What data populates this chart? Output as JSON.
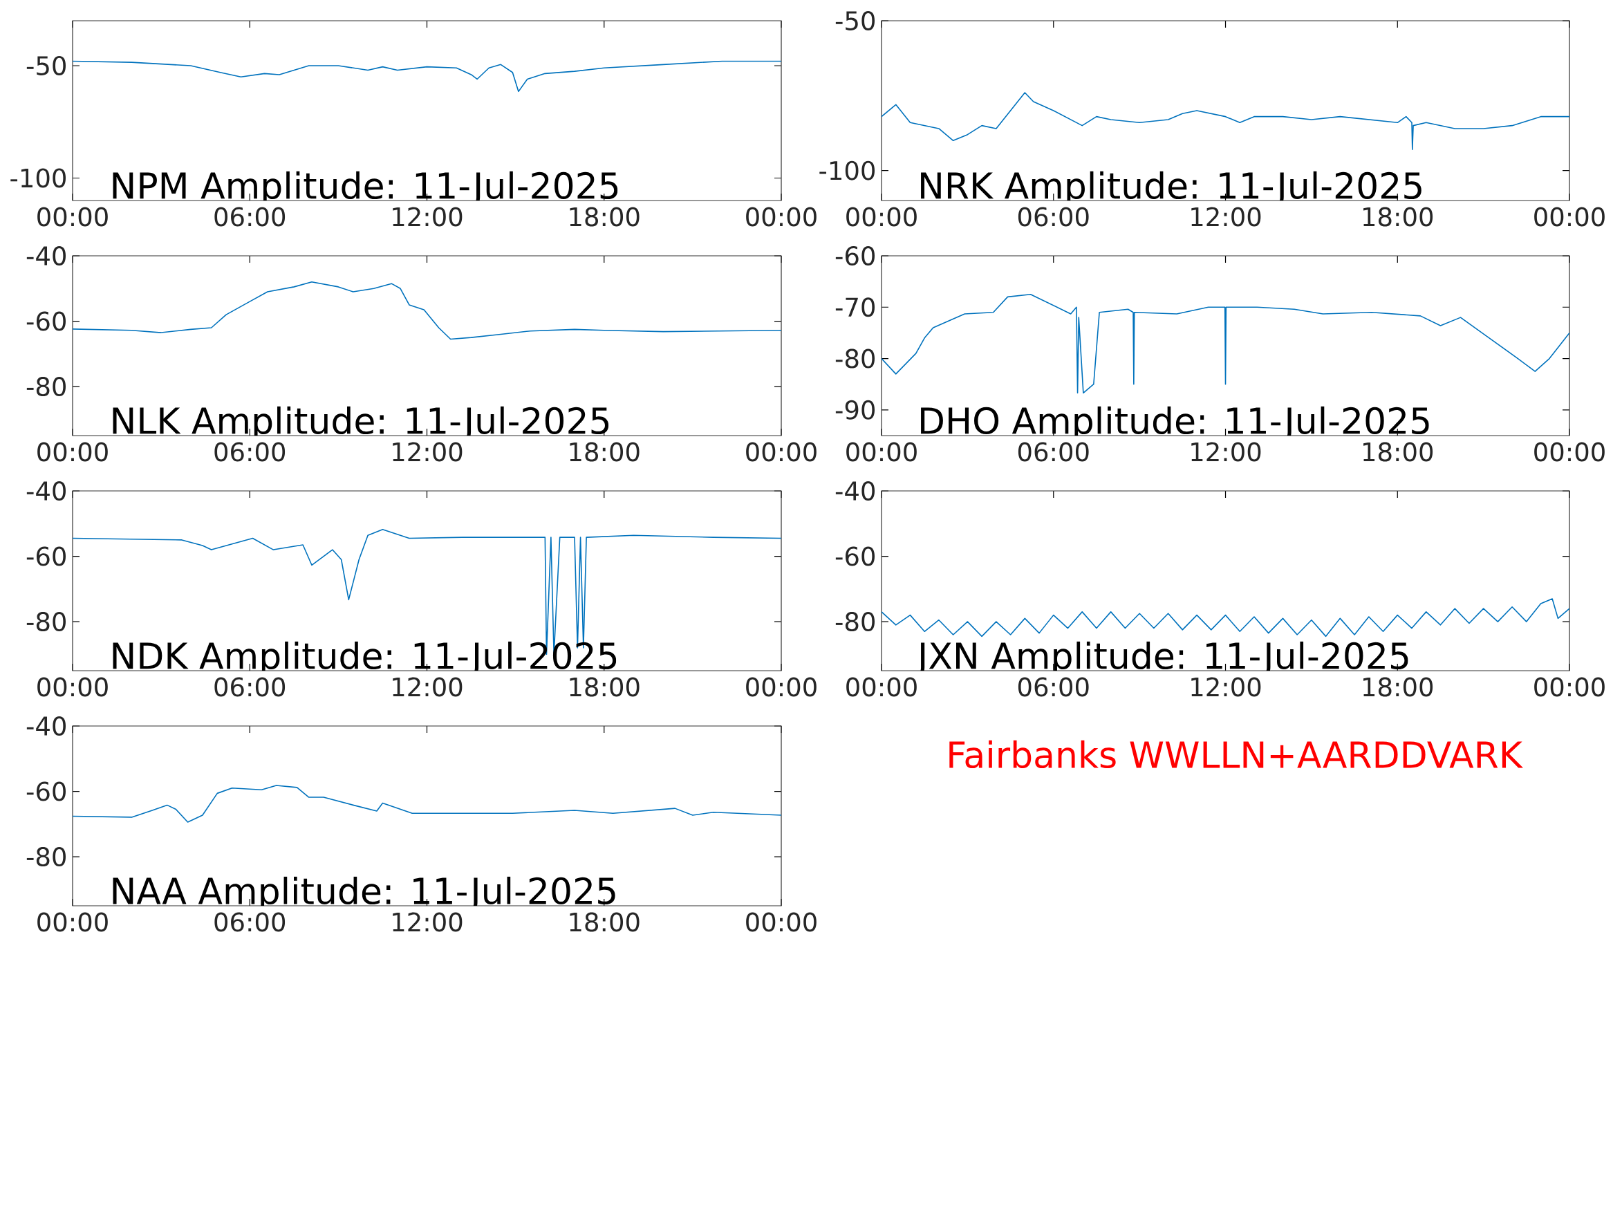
{
  "chart_data": [
    {
      "type": "line",
      "title": "NPM Amplitude: 11-Jul-2025",
      "color": "#0072bd",
      "xlim": [
        0,
        24
      ],
      "ylim": [
        -110,
        -30
      ],
      "xticks": [
        {
          "value": 0,
          "label": "00:00"
        },
        {
          "value": 6,
          "label": "06:00"
        },
        {
          "value": 12,
          "label": "12:00"
        },
        {
          "value": 18,
          "label": "18:00"
        },
        {
          "value": 24,
          "label": "00:00"
        }
      ],
      "yticks": [
        -100,
        -50
      ],
      "x": [
        0,
        2,
        4,
        5,
        5.7,
        6.5,
        7,
        7.5,
        8,
        9,
        10,
        10.5,
        11,
        12,
        13,
        13.5,
        13.7,
        14.1,
        14.5,
        14.9,
        15.1,
        15.4,
        16,
        17,
        18,
        20,
        22,
        24
      ],
      "values": [
        -48,
        -48.5,
        -50,
        -53,
        -55,
        -53.5,
        -54,
        -52,
        -50,
        -50,
        -52,
        -50.5,
        -52,
        -50.5,
        -51,
        -54,
        -56,
        -51,
        -49.5,
        -53,
        -61.5,
        -56,
        -53.5,
        -52.5,
        -51,
        -49.5,
        -48,
        -48
      ]
    },
    {
      "type": "line",
      "title": "NRK Amplitude: 11-Jul-2025",
      "color": "#0072bd",
      "xlim": [
        0,
        24
      ],
      "ylim": [
        -110,
        -50
      ],
      "xticks": [
        {
          "value": 0,
          "label": "00:00"
        },
        {
          "value": 6,
          "label": "06:00"
        },
        {
          "value": 12,
          "label": "12:00"
        },
        {
          "value": 18,
          "label": "18:00"
        },
        {
          "value": 24,
          "label": "00:00"
        }
      ],
      "yticks": [
        -100,
        -50
      ],
      "x": [
        0,
        0.5,
        1,
        2,
        2.5,
        3,
        3.5,
        4,
        4.5,
        5,
        5.3,
        6,
        7,
        7.5,
        8,
        9,
        10,
        10.5,
        11,
        12,
        12.5,
        13,
        14,
        15,
        16,
        17,
        18,
        18.3,
        18.5,
        18.52,
        18.55,
        19,
        20,
        21,
        22,
        23,
        24
      ],
      "values": [
        -82,
        -78,
        -84,
        -86,
        -90,
        -88,
        -85,
        -86,
        -80,
        -74,
        -77,
        -80,
        -85,
        -82,
        -83,
        -84,
        -83,
        -81,
        -80,
        -82,
        -84,
        -82,
        -82,
        -83,
        -82,
        -83,
        -84,
        -82,
        -84,
        -93,
        -85,
        -84,
        -86,
        -86,
        -85,
        -82,
        -82
      ]
    },
    {
      "type": "line",
      "title": "NLK Amplitude: 11-Jul-2025",
      "color": "#0072bd",
      "xlim": [
        0,
        24
      ],
      "ylim": [
        -95,
        -40
      ],
      "xticks": [
        {
          "value": 0,
          "label": "00:00"
        },
        {
          "value": 6,
          "label": "06:00"
        },
        {
          "value": 12,
          "label": "12:00"
        },
        {
          "value": 18,
          "label": "18:00"
        },
        {
          "value": 24,
          "label": "00:00"
        }
      ],
      "yticks": [
        -80,
        -60,
        -40
      ],
      "x": [
        0,
        2,
        3,
        4,
        4.7,
        5.2,
        6,
        6.6,
        7.5,
        8.1,
        9,
        9.5,
        10.2,
        10.8,
        11.1,
        11.4,
        11.9,
        12.4,
        12.8,
        13.5,
        14.5,
        15.5,
        17,
        18,
        20,
        22,
        24
      ],
      "values": [
        -62.4,
        -62.8,
        -63.5,
        -62.5,
        -62,
        -58,
        -54,
        -51,
        -49.5,
        -48,
        -49.5,
        -51,
        -50,
        -48.5,
        -50,
        -55,
        -56.5,
        -62,
        -65.5,
        -65,
        -64,
        -63,
        -62.5,
        -62.8,
        -63.2,
        -63,
        -62.8
      ]
    },
    {
      "type": "line",
      "title": "DHO Amplitude: 11-Jul-2025",
      "color": "#0072bd",
      "xlim": [
        0,
        24
      ],
      "ylim": [
        -95,
        -60
      ],
      "xticks": [
        {
          "value": 0,
          "label": "00:00"
        },
        {
          "value": 6,
          "label": "06:00"
        },
        {
          "value": 12,
          "label": "12:00"
        },
        {
          "value": 18,
          "label": "18:00"
        },
        {
          "value": 24,
          "label": "00:00"
        }
      ],
      "yticks": [
        -90,
        -80,
        -70,
        -60
      ],
      "x": [
        0,
        0.5,
        1.2,
        1.5,
        1.8,
        2.5,
        2.9,
        3.9,
        4.4,
        5.2,
        5.9,
        6.6,
        6.8,
        6.84,
        6.88,
        7.04,
        7.4,
        7.6,
        8.6,
        8.78,
        8.8,
        8.82,
        10.3,
        11.4,
        11.98,
        12,
        12.02,
        13.1,
        14.4,
        15.4,
        17.1,
        18.8,
        19.5,
        20.2,
        21.2,
        22.2,
        22.8,
        23.3,
        24
      ],
      "values": [
        -80,
        -83,
        -79,
        -76,
        -74,
        -72.3,
        -71.3,
        -71,
        -68,
        -67.5,
        -69.4,
        -71.3,
        -70,
        -86.7,
        -72,
        -86.7,
        -85,
        -71,
        -70.4,
        -71,
        -85,
        -71,
        -71.3,
        -70,
        -70,
        -85,
        -70,
        -70,
        -70.4,
        -71.3,
        -71,
        -71.7,
        -73.6,
        -72,
        -76,
        -80,
        -82.5,
        -80,
        -75
      ]
    },
    {
      "type": "line",
      "title": "NDK Amplitude: 11-Jul-2025",
      "color": "#0072bd",
      "xlim": [
        0,
        24
      ],
      "ylim": [
        -95,
        -40
      ],
      "xticks": [
        {
          "value": 0,
          "label": "00:00"
        },
        {
          "value": 6,
          "label": "06:00"
        },
        {
          "value": 12,
          "label": "12:00"
        },
        {
          "value": 18,
          "label": "18:00"
        },
        {
          "value": 24,
          "label": "00:00"
        }
      ],
      "yticks": [
        -80,
        -60,
        -40
      ],
      "x": [
        0,
        3.7,
        4.4,
        4.7,
        6.1,
        6.8,
        7.8,
        8.1,
        8.8,
        9.1,
        9.35,
        9.7,
        10,
        10.5,
        11.4,
        13.2,
        16,
        16.05,
        16.2,
        16.3,
        16.5,
        17,
        17.1,
        17.2,
        17.3,
        17.4,
        19,
        21.7,
        24
      ],
      "values": [
        -54.5,
        -55,
        -56.7,
        -58,
        -54.5,
        -58,
        -56.5,
        -62.7,
        -58,
        -61,
        -73.3,
        -61,
        -53.6,
        -51.8,
        -54.5,
        -54.2,
        -54.2,
        -90,
        -54.2,
        -90,
        -54.2,
        -54.2,
        -88,
        -54.2,
        -88,
        -54.2,
        -53.6,
        -54.2,
        -54.5
      ]
    },
    {
      "type": "line",
      "title": "JXN Amplitude: 11-Jul-2025",
      "color": "#0072bd",
      "xlim": [
        0,
        24
      ],
      "ylim": [
        -95,
        -40
      ],
      "xticks": [
        {
          "value": 0,
          "label": "00:00"
        },
        {
          "value": 6,
          "label": "06:00"
        },
        {
          "value": 12,
          "label": "12:00"
        },
        {
          "value": 18,
          "label": "18:00"
        },
        {
          "value": 24,
          "label": "00:00"
        }
      ],
      "yticks": [
        -80,
        -60,
        -40
      ],
      "x": [
        0,
        0.5,
        1,
        1.5,
        2,
        2.5,
        3,
        3.5,
        4,
        4.5,
        5,
        5.5,
        6,
        6.5,
        7,
        7.5,
        8,
        8.5,
        9,
        9.5,
        10,
        10.5,
        11,
        11.5,
        12,
        12.5,
        13,
        13.5,
        14,
        14.5,
        15,
        15.5,
        16,
        16.5,
        17,
        17.5,
        18,
        18.5,
        19,
        19.5,
        20,
        20.5,
        21,
        21.5,
        22,
        22.5,
        23,
        23.4,
        23.6,
        24
      ],
      "values": [
        -77,
        -81,
        -78,
        -83,
        -79.5,
        -84,
        -80,
        -84.5,
        -80,
        -84,
        -79,
        -83.5,
        -78,
        -82,
        -77,
        -82,
        -77,
        -82,
        -77.5,
        -82,
        -77.5,
        -82.5,
        -78,
        -82.5,
        -78,
        -83,
        -78.5,
        -83.5,
        -79,
        -84,
        -79.5,
        -84.5,
        -79,
        -84,
        -78.5,
        -83,
        -78,
        -82,
        -77,
        -81,
        -76,
        -80.5,
        -76,
        -80,
        -75.5,
        -80,
        -74.5,
        -73,
        -79,
        -76
      ]
    },
    {
      "type": "line",
      "title": "NAA Amplitude: 11-Jul-2025",
      "color": "#0072bd",
      "xlim": [
        0,
        24
      ],
      "ylim": [
        -95,
        -40
      ],
      "xticks": [
        {
          "value": 0,
          "label": "00:00"
        },
        {
          "value": 6,
          "label": "06:00"
        },
        {
          "value": 12,
          "label": "12:00"
        },
        {
          "value": 18,
          "label": "18:00"
        },
        {
          "value": 24,
          "label": "00:00"
        }
      ],
      "yticks": [
        -80,
        -60,
        -40
      ],
      "x": [
        0,
        2,
        2.7,
        3.2,
        3.5,
        3.9,
        4.4,
        4.9,
        5.4,
        6.4,
        6.9,
        7.6,
        8,
        8.5,
        9.5,
        10.3,
        10.5,
        11.5,
        14.9,
        17,
        18.3,
        20.4,
        21,
        21.7,
        24
      ],
      "values": [
        -67.6,
        -67.9,
        -65.8,
        -64.2,
        -65.5,
        -69.4,
        -67.3,
        -60.6,
        -59,
        -59.5,
        -58.2,
        -58.8,
        -61.8,
        -61.8,
        -64.2,
        -66,
        -63.6,
        -66.7,
        -66.7,
        -65.8,
        -66.7,
        -65.2,
        -67.3,
        -66.4,
        -67.3
      ]
    },
    {
      "type": "other",
      "annotations": [
        "Fairbanks WWLLN+AARDDVARK"
      ]
    }
  ]
}
